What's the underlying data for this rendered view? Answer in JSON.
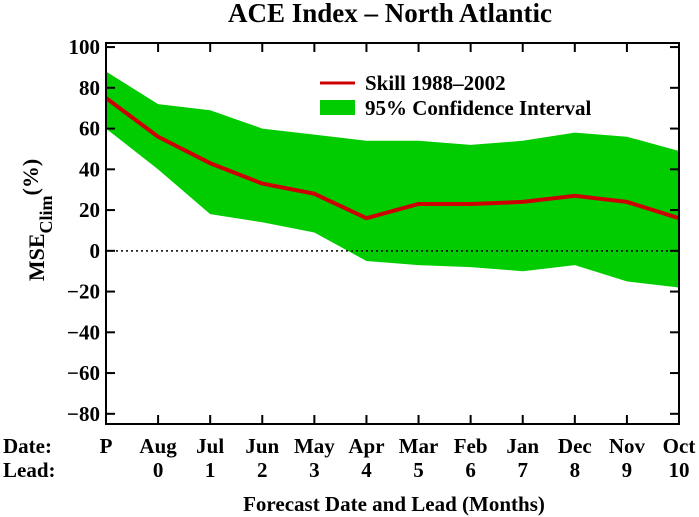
{
  "chart_data": {
    "type": "line",
    "title": "ACE Index – North Atlantic",
    "xlabel": "Forecast Date and Lead (Months)",
    "ylabel_main": "MSE",
    "ylabel_sub": "Clim",
    "ylabel_unit": "(%)",
    "row_label_date": "Date:",
    "row_label_lead": "Lead:",
    "dates": [
      "P",
      "Aug",
      "Jul",
      "Jun",
      "May",
      "Apr",
      "Mar",
      "Feb",
      "Jan",
      "Dec",
      "Nov",
      "Oct"
    ],
    "leads": [
      "",
      "0",
      "1",
      "2",
      "3",
      "4",
      "5",
      "6",
      "7",
      "8",
      "9",
      "10"
    ],
    "ylim": [
      -85,
      102
    ],
    "yticks": [
      -80,
      -60,
      -40,
      -20,
      0,
      20,
      40,
      60,
      80,
      100
    ],
    "reference_line": 0,
    "legend_position": "top-right",
    "series": [
      {
        "name": "Skill 1988–2002",
        "kind": "line",
        "color": "#cc0000",
        "values": [
          75,
          56,
          43,
          33,
          28,
          16,
          23,
          23,
          24,
          27,
          24,
          16
        ]
      },
      {
        "name": "95% Confidence Interval",
        "kind": "band",
        "color": "#00cc00",
        "upper": [
          88,
          72,
          69,
          60,
          57,
          54,
          54,
          52,
          54,
          58,
          56,
          49
        ],
        "lower": [
          60,
          40,
          18,
          14,
          9,
          -5,
          -7,
          -8,
          -10,
          -7,
          -15,
          -18
        ]
      }
    ]
  }
}
